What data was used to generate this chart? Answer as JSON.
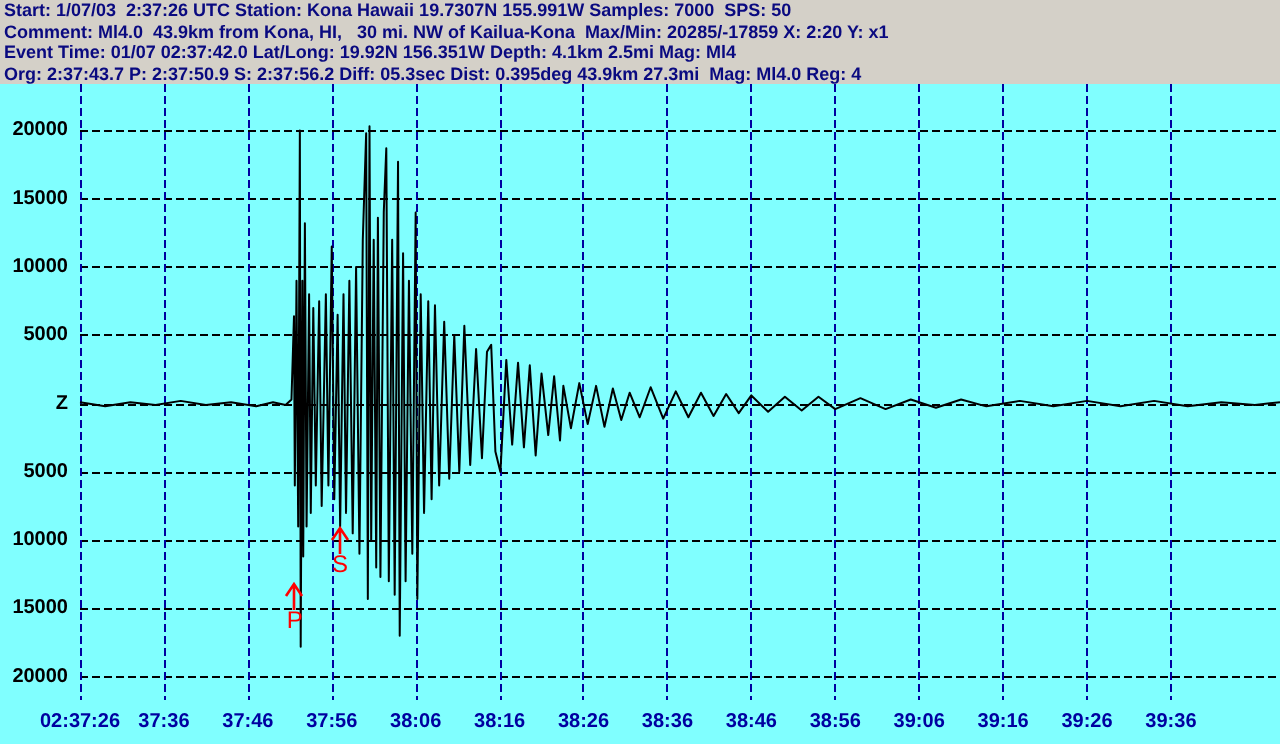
{
  "chart_data": {
    "type": "line",
    "annotations": [
      "Start: 1/07/03  2:37:26 UTC Station: Kona Hawaii 19.7307N 155.991W Samples: 7000  SPS: 50",
      "Comment: Ml4.0  43.9km from Kona, HI,   30 mi. NW of Kailua-Kona  Max/Min: 20285/-17859 X: 2:20 Y: x1",
      "Event Time: 01/07 02:37:42.0 Lat/Long: 19.92N 156.351W Depth: 4.1km 2.5mi Mag: Ml4",
      "Org: 2:37:43.7 P: 2:37:50.9 S: 2:37:56.2 Diff: 05.3sec Dist: 0.395deg 43.9km 27.3mi  Mag: Ml4.0 Reg: 4",
      {
        "text": "P",
        "x": "--01-07T02:37:51.6",
        "y": -13000
      },
      {
        "text": "S",
        "x": "--01-07T02:37:57",
        "y": -9000
      }
    ],
    "xlim": [
      "--01-07T02:37:26",
      "--01-07T02:39:49"
    ],
    "xticks": [
      {
        "value": "--01-07T02:37:26",
        "label": "02:37:26"
      },
      {
        "value": "--01-07T02:37:36",
        "label": "37:36"
      },
      {
        "value": "--01-07T02:37:46",
        "label": "37:46"
      },
      {
        "value": "--01-07T02:37:56",
        "label": "37:56"
      },
      {
        "value": "--01-07T02:38:06",
        "label": "38:06"
      },
      {
        "value": "--01-07T02:38:16",
        "label": "38:16"
      },
      {
        "value": "--01-07T02:38:26",
        "label": "38:26"
      },
      {
        "value": "--01-07T02:38:36",
        "label": "38:36"
      },
      {
        "value": "--01-07T02:38:46",
        "label": "38:46"
      },
      {
        "value": "--01-07T02:38:56",
        "label": "38:56"
      },
      {
        "value": "--01-07T02:39:06",
        "label": "39:06"
      },
      {
        "value": "--01-07T02:39:16",
        "label": "39:16"
      },
      {
        "value": "--01-07T02:39:26",
        "label": "39:26"
      },
      {
        "value": "--01-07T02:39:36",
        "label": "39:36"
      }
    ],
    "ylim": [
      -21700,
      23400
    ],
    "yticks": [
      20000,
      15000,
      10000,
      5000,
      {
        "value": 0,
        "label": "Z"
      },
      {
        "value": -5000,
        "label": "5000"
      },
      {
        "value": -10000,
        "label": "10000"
      },
      {
        "value": -15000,
        "label": "15000"
      },
      {
        "value": -20000,
        "label": "20000"
      }
    ],
    "grid": true,
    "marker": "none",
    "line_style": "solid",
    "series": [
      {
        "color": "#000000",
        "x": [
          "--01-07T02:37:26",
          "--01-07T02:37:29",
          "--01-07T02:37:32",
          "--01-07T02:37:35",
          "--01-07T02:37:38",
          "--01-07T02:37:41",
          "--01-07T02:37:44",
          "--01-07T02:37:47",
          "--01-07T02:37:49",
          "--01-07T02:37:50.5",
          "--01-07T02:37:51.2",
          "--01-07T02:37:51.5",
          "--01-07T02:37:51.6",
          "--01-07T02:37:51.8",
          "--01-07T02:37:52",
          "--01-07T02:37:52.2",
          "--01-07T02:37:52.3",
          "--01-07T02:37:52.5",
          "--01-07T02:37:52.6",
          "--01-07T02:37:52.8",
          "--01-07T02:37:53",
          "--01-07T02:37:53.3",
          "--01-07T02:37:53.5",
          "--01-07T02:37:53.8",
          "--01-07T02:37:54.1",
          "--01-07T02:37:54.5",
          "--01-07T02:37:54.8",
          "--01-07T02:37:55.3",
          "--01-07T02:37:55.6",
          "--01-07T02:37:56",
          "--01-07T02:37:56.3",
          "--01-07T02:37:56.7",
          "--01-07T02:37:57",
          "--01-07T02:37:57.4",
          "--01-07T02:37:57.7",
          "--01-07T02:37:58.1",
          "--01-07T02:37:58.5",
          "--01-07T02:37:58.9",
          "--01-07T02:37:59.3",
          "--01-07T02:37:59.7",
          "--01-07T02:38:00.1",
          "--01-07T02:38:00.3",
          "--01-07T02:38:00.5",
          "--01-07T02:38:00.7",
          "--01-07T02:38:01",
          "--01-07T02:38:01.3",
          "--01-07T02:38:01.5",
          "--01-07T02:38:01.8",
          "--01-07T02:38:02.2",
          "--01-07T02:38:02.5",
          "--01-07T02:38:02.8",
          "--01-07T02:38:03.2",
          "--01-07T02:38:03.5",
          "--01-07T02:38:03.9",
          "--01-07T02:38:04.1",
          "--01-07T02:38:04.5",
          "--01-07T02:38:04.8",
          "--01-07T02:38:05.2",
          "--01-07T02:38:05.6",
          "--01-07T02:38:06",
          "--01-07T02:38:06.2",
          "--01-07T02:38:06.6",
          "--01-07T02:38:07",
          "--01-07T02:38:07.5",
          "--01-07T02:38:07.9",
          "--01-07T02:38:08.3",
          "--01-07T02:38:08.8",
          "--01-07T02:38:09.4",
          "--01-07T02:38:10",
          "--01-07T02:38:10.6",
          "--01-07T02:38:11.2",
          "--01-07T02:38:11.8",
          "--01-07T02:38:12.5",
          "--01-07T02:38:13.2",
          "--01-07T02:38:13.9",
          "--01-07T02:38:14.5",
          "--01-07T02:38:15",
          "--01-07T02:38:15.5",
          "--01-07T02:38:16.1",
          "--01-07T02:38:16.8",
          "--01-07T02:38:17.5",
          "--01-07T02:38:18.2",
          "--01-07T02:38:18.9",
          "--01-07T02:38:19.6",
          "--01-07T02:38:20.3",
          "--01-07T02:38:21",
          "--01-07T02:38:21.8",
          "--01-07T02:38:22.5",
          "--01-07T02:38:23.2",
          "--01-07T02:38:23.6",
          "--01-07T02:38:24.5",
          "--01-07T02:38:25.5",
          "--01-07T02:38:26.5",
          "--01-07T02:38:27.5",
          "--01-07T02:38:28.5",
          "--01-07T02:38:29.5",
          "--01-07T02:38:30.5",
          "--01-07T02:38:31.5",
          "--01-07T02:38:32.7",
          "--01-07T02:38:34",
          "--01-07T02:38:35.5",
          "--01-07T02:38:37",
          "--01-07T02:38:38.5",
          "--01-07T02:38:40",
          "--01-07T02:38:41.5",
          "--01-07T02:38:43",
          "--01-07T02:38:44.5",
          "--01-07T02:38:46",
          "--01-07T02:38:48",
          "--01-07T02:38:50",
          "--01-07T02:38:52",
          "--01-07T02:38:54",
          "--01-07T02:38:56",
          "--01-07T02:38:59",
          "--01-07T02:39:02",
          "--01-07T02:39:05",
          "--01-07T02:39:08",
          "--01-07T02:39:11",
          "--01-07T02:39:14",
          "--01-07T02:39:18",
          "--01-07T02:39:22",
          "--01-07T02:39:26",
          "--01-07T02:39:30",
          "--01-07T02:39:34",
          "--01-07T02:39:38",
          "--01-07T02:39:42",
          "--01-07T02:39:46",
          "--01-07T02:39:49"
        ],
        "values": [
          100,
          -200,
          100,
          -100,
          200,
          -100,
          100,
          -200,
          100,
          -100,
          300,
          6400,
          -6000,
          9000,
          -9000,
          20000,
          -17800,
          9000,
          -11200,
          13200,
          -9000,
          8000,
          -8000,
          7000,
          -6000,
          7500,
          -7500,
          8000,
          -6000,
          11500,
          -7000,
          6500,
          -9000,
          8000,
          -8000,
          9000,
          -9500,
          10000,
          -11000,
          12000,
          19800,
          -14300,
          20300,
          -10000,
          12000,
          -12000,
          13600,
          -12700,
          14000,
          18700,
          -13000,
          12000,
          -14000,
          17700,
          -17000,
          11000,
          -13000,
          9000,
          -11000,
          14000,
          -14300,
          8000,
          -8000,
          7500,
          -7000,
          7200,
          -6000,
          6000,
          -5500,
          5000,
          -5000,
          5700,
          -4500,
          4000,
          -4000,
          3800,
          4300,
          -3500,
          -5000,
          3200,
          -3000,
          3000,
          -3200,
          2800,
          -3800,
          2200,
          -2300,
          2000,
          -2700,
          1300,
          -1800,
          1500,
          -1500,
          1300,
          -1700,
          1100,
          -1200,
          800,
          -1000,
          1200,
          -1100,
          900,
          -1000,
          800,
          -900,
          700,
          -700,
          600,
          -600,
          500,
          -500,
          500,
          -400,
          400,
          -400,
          300,
          -300,
          300,
          -200,
          200,
          -200,
          200,
          -200,
          200,
          -200,
          100,
          -100,
          100
        ]
      }
    ]
  }
}
